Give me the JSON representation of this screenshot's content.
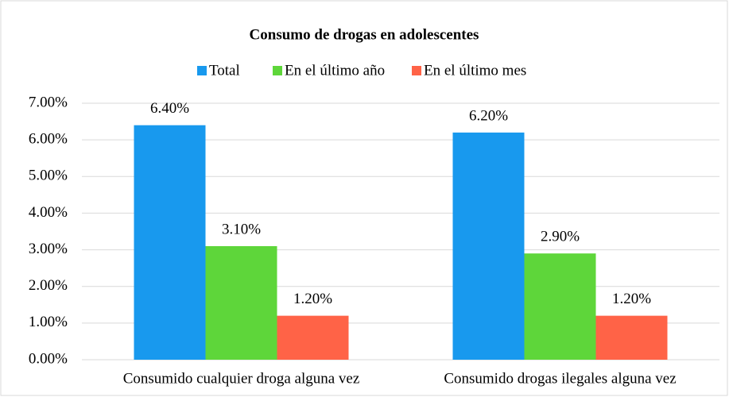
{
  "chart_data": {
    "type": "bar",
    "title": "Consumo de drogas en adolescentes",
    "categories": [
      "Consumido cualquier droga alguna vez",
      "Consumido drogas ilegales alguna vez"
    ],
    "series": [
      {
        "name": "Total",
        "color": "#1899ee",
        "values": [
          6.4,
          6.2
        ],
        "value_labels": [
          "6.40%",
          "6.20%"
        ]
      },
      {
        "name": "En el último año",
        "color": "#5ed63a",
        "values": [
          3.1,
          2.9
        ],
        "value_labels": [
          "3.10%",
          "2.90%"
        ]
      },
      {
        "name": "En el último mes",
        "color": "#ff6347",
        "values": [
          1.2,
          1.2
        ],
        "value_labels": [
          "1.20%",
          "1.20%"
        ]
      }
    ],
    "ylim": [
      0,
      7
    ],
    "yticks": [
      {
        "value": 0,
        "label": "0.00%"
      },
      {
        "value": 1,
        "label": "1.00%"
      },
      {
        "value": 2,
        "label": "2.00%"
      },
      {
        "value": 3,
        "label": "3.00%"
      },
      {
        "value": 4,
        "label": "4.00%"
      },
      {
        "value": 5,
        "label": "5.00%"
      },
      {
        "value": 6,
        "label": "6.00%"
      },
      {
        "value": 7,
        "label": "7.00%"
      }
    ],
    "grid": true,
    "legend": "top"
  }
}
